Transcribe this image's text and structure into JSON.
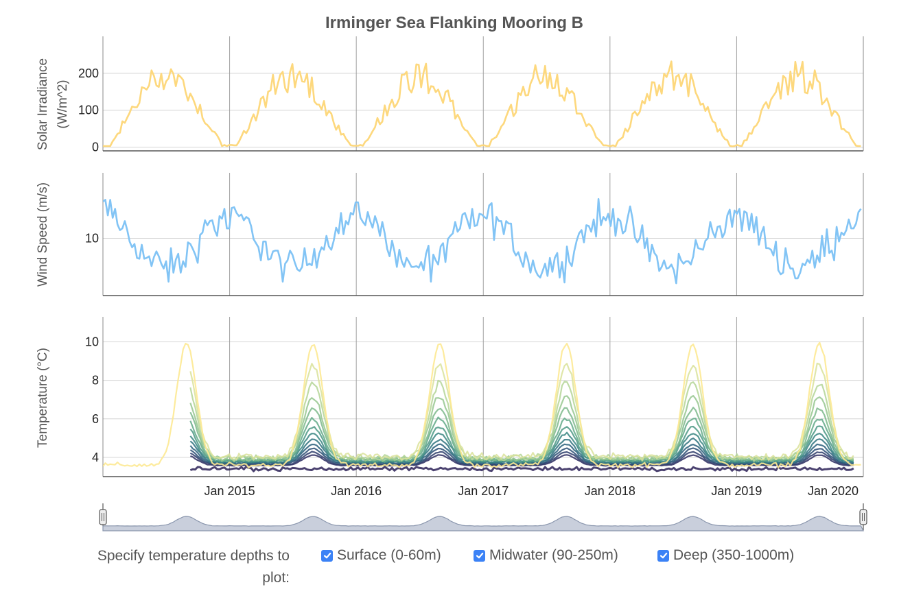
{
  "title": "Irminger Sea Flanking Mooring B",
  "colors": {
    "solar": "#fdd87d",
    "wind": "#82c4f5",
    "grid": "#d4d4d4",
    "axis": "#888888",
    "range_fill": "#c9cfdc",
    "range_line": "#8a96ad",
    "checkbox": "#3b82f6"
  },
  "chart_data": [
    {
      "type": "line",
      "name": "solar",
      "ylabel": "Solar Irradiance (W/m^2)",
      "yticks": [
        0,
        100,
        200
      ],
      "ylim": [
        -10,
        300
      ],
      "xlim": [
        "2014-01-01",
        "2020-01-01"
      ],
      "series": [
        {
          "name": "Solar Irradiance",
          "x": [],
          "values": []
        }
      ]
    },
    {
      "type": "line",
      "name": "wind",
      "ylabel": "Wind Speed (m/s)",
      "yticks": [
        10
      ],
      "ylim": [
        3,
        18
      ],
      "xlim": [
        "2014-01-01",
        "2020-01-01"
      ],
      "series": [
        {
          "name": "Wind Speed",
          "x": [],
          "values": []
        }
      ]
    },
    {
      "type": "line",
      "name": "temperature",
      "ylabel": "Temperature (°C)",
      "yticks": [
        4,
        6,
        8,
        10
      ],
      "ylim": [
        3,
        11.3
      ],
      "xlim": [
        "2014-01-01",
        "2020-01-01"
      ],
      "xticks": [
        "Jan 2015",
        "Jan 2016",
        "Jan 2017",
        "Jan 2018",
        "Jan 2019",
        "Jan 2020"
      ],
      "depth_levels": 14,
      "series": []
    }
  ],
  "rangeselector": {
    "label": "range selector"
  },
  "controls": {
    "label_line1": "Specify temperature depths to",
    "label_line2": "plot:",
    "options": [
      {
        "label": "Surface (0-60m)",
        "checked": true
      },
      {
        "label": "Midwater (90-250m)",
        "checked": true
      },
      {
        "label": "Deep (350-1000m)",
        "checked": true
      }
    ]
  }
}
